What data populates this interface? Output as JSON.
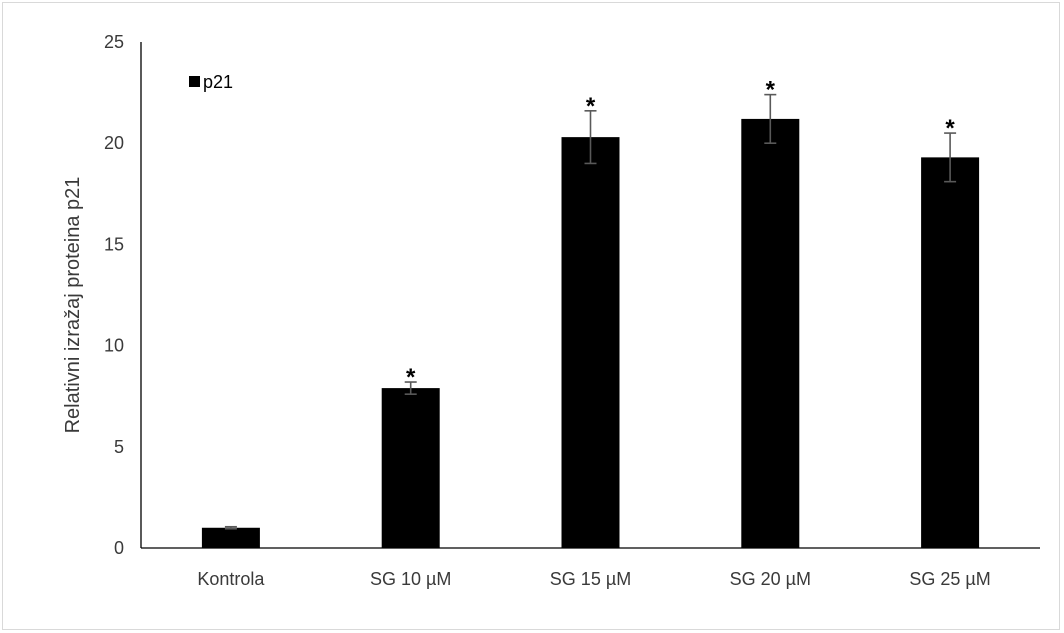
{
  "chart_data": {
    "type": "bar",
    "title": "",
    "xlabel": "",
    "ylabel": "Relativni izražaj proteina p21",
    "categories": [
      "Kontrola",
      "SG 10 µM",
      "SG 15 µM",
      "SG 20 µM",
      "SG 25 µM"
    ],
    "series": [
      {
        "name": "p21",
        "values": [
          1.0,
          7.9,
          20.3,
          21.2,
          19.3
        ],
        "errors": [
          0.05,
          0.3,
          1.3,
          1.2,
          1.2
        ],
        "annotations": [
          "",
          "*",
          "*",
          "*",
          "*"
        ]
      }
    ],
    "ylim": [
      0,
      25
    ],
    "yticks": [
      "0",
      "5",
      "10",
      "15",
      "20",
      "25"
    ],
    "grid": false,
    "legend_position": "top-left",
    "colors": {
      "bar": "#000000",
      "axis": "#000000",
      "error_bar": "#595959"
    }
  }
}
